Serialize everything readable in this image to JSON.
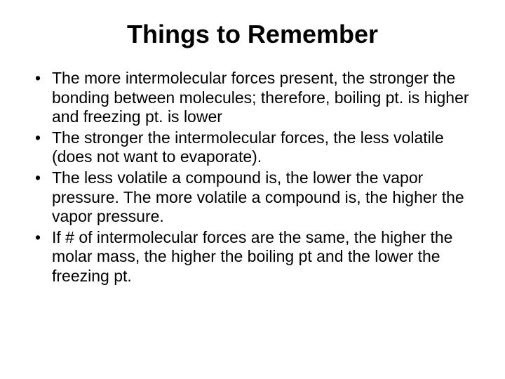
{
  "slide": {
    "title": "Things to Remember",
    "title_fontsize": 36,
    "title_fontweight": "bold",
    "body_fontsize": 23,
    "background_color": "#ffffff",
    "text_color": "#000000",
    "bullets": [
      "The more intermolecular forces present, the stronger the bonding between molecules; therefore, boiling pt. is higher and freezing pt. is lower",
      "The stronger the intermolecular forces, the less volatile (does not want to evaporate).",
      "The less volatile a compound is, the lower  the vapor pressure.  The more volatile a compound is, the higher the vapor pressure.",
      "If # of intermolecular forces are the same, the higher the molar mass, the higher the boiling pt and the lower the freezing pt."
    ]
  }
}
